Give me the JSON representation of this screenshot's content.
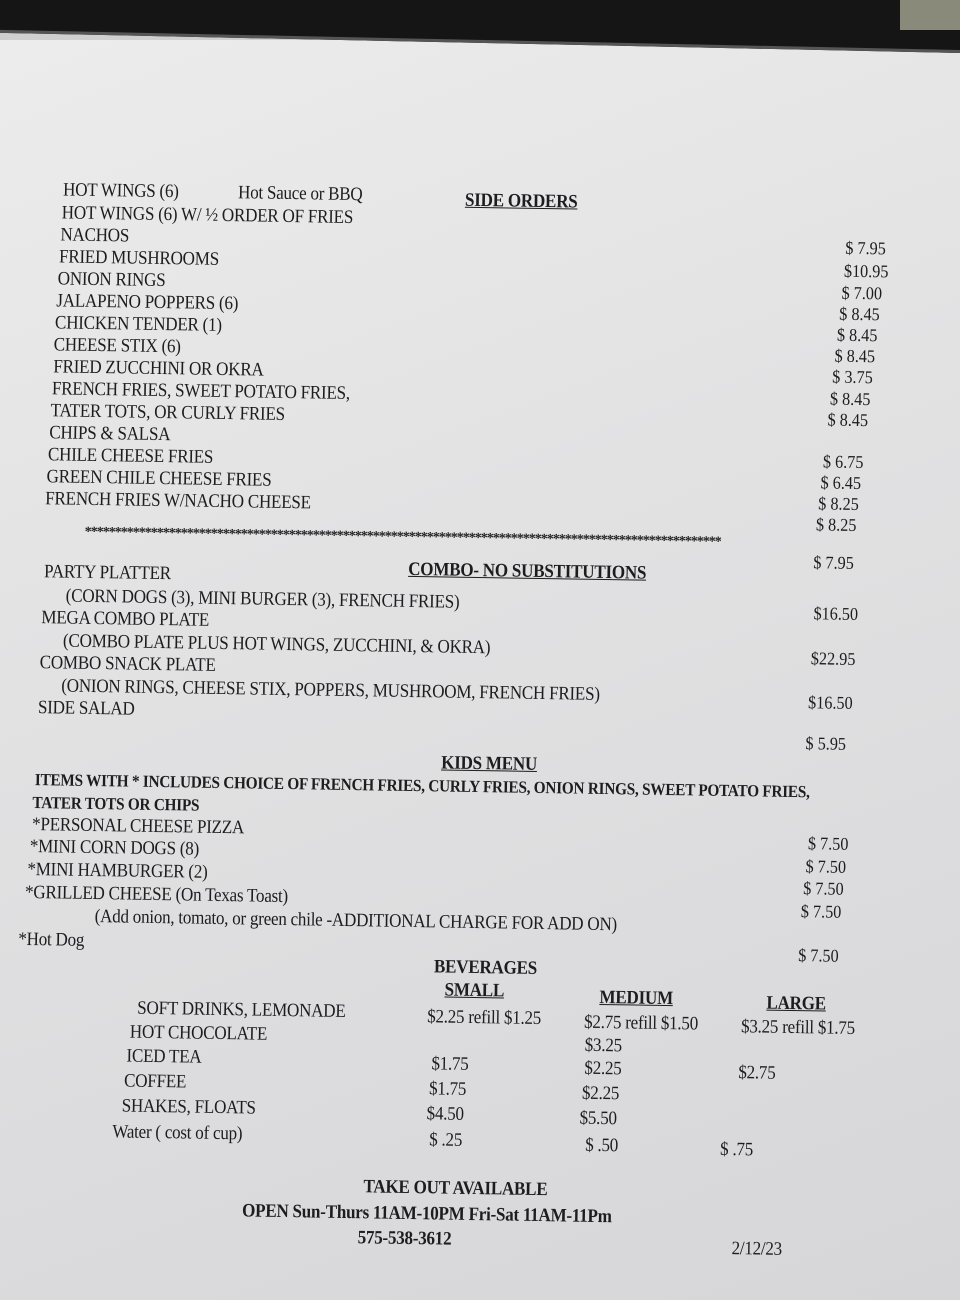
{
  "side_orders": {
    "heading": "SIDE ORDERS",
    "sauce_note": "Hot Sauce or BBQ",
    "items": [
      "HOT WINGS (6)",
      "HOT WINGS (6) W/ ½ ORDER OF FRIES",
      "NACHOS",
      "FRIED MUSHROOMS",
      "ONION RINGS",
      "JALAPENO POPPERS (6)",
      "CHICKEN TENDER (1)",
      "CHEESE STIX (6)",
      "FRIED ZUCCHINI OR OKRA",
      "FRENCH FRIES, SWEET POTATO FRIES,",
      "TATER TOTS, OR CURLY FRIES",
      "CHIPS & SALSA",
      "CHILE CHEESE FRIES",
      "GREEN CHILE CHEESE FRIES",
      "FRENCH FRIES W/NACHO CHEESE"
    ],
    "prices": [
      "$ 7.95",
      "$10.95",
      "$ 7.00",
      "$ 8.45",
      "$ 8.45",
      "$ 8.45",
      "$ 3.75",
      "$ 8.45",
      "$ 8.45",
      "$ 6.75",
      "$ 6.45",
      "$ 8.25",
      "$ 8.25",
      "$ 7.95"
    ]
  },
  "divider": "**********************************************************************************************************",
  "combo": {
    "heading": "COMBO- NO SUBSTITUTIONS",
    "items": [
      {
        "name": "PARTY PLATTER",
        "desc": "(CORN DOGS (3), MINI BURGER (3), FRENCH FRIES)",
        "price": "$16.50"
      },
      {
        "name": "MEGA COMBO PLATE",
        "desc": "(COMBO PLATE PLUS HOT WINGS, ZUCCHINI, & OKRA)",
        "price": "$22.95"
      },
      {
        "name": "COMBO SNACK PLATE",
        "desc": "(ONION RINGS, CHEESE STIX, POPPERS, MUSHROOM, FRENCH FRIES)",
        "price": "$16.50"
      },
      {
        "name": "SIDE SALAD",
        "price": "$ 5.95"
      }
    ]
  },
  "kids": {
    "heading": "KIDS MENU",
    "note_1": "ITEMS WITH * INCLUDES CHOICE OF  FRENCH FRIES, CURLY FRIES, ONION RINGS, SWEET POTATO FRIES,",
    "note_2": "TATER TOTS OR CHIPS",
    "items": [
      "*PERSONAL CHEESE PIZZA",
      "*MINI CORN DOGS (8)",
      "*MINI HAMBURGER  (2)",
      "*GRILLED CHEESE (On Texas Toast)",
      "(Add onion, tomato, or green chile -ADDITIONAL CHARGE FOR ADD ON)",
      "*Hot Dog"
    ],
    "prices": [
      "$ 7.50",
      "$ 7.50",
      "$ 7.50",
      "$ 7.50",
      "$ 7.50"
    ]
  },
  "beverages": {
    "heading": "BEVERAGES",
    "columns": [
      "SMALL",
      "MEDIUM",
      "LARGE"
    ],
    "rows": [
      {
        "name": "SOFT DRINKS, LEMONADE",
        "small": "$2.25 refill $1.25",
        "medium": "$2.75 refill $1.50",
        "large": "$3.25 refill $1.75"
      },
      {
        "name": "HOT CHOCOLATE",
        "small": "",
        "medium": "$3.25",
        "large": ""
      },
      {
        "name": "ICED TEA",
        "small": "$1.75",
        "medium": "$2.25",
        "large": "$2.75"
      },
      {
        "name": "COFFEE",
        "small": "$1.75",
        "medium": "$2.25",
        "large": ""
      },
      {
        "name": "SHAKES, FLOATS",
        "small": "$4.50",
        "medium": "$5.50",
        "large": ""
      },
      {
        "name": "Water  ( cost of cup)",
        "small": "$ .25",
        "medium": "$ .50",
        "large": "$  .75"
      }
    ]
  },
  "footer": {
    "takeout": "TAKE OUT AVAILABLE",
    "hours": "OPEN Sun-Thurs 11AM-10PM  Fri-Sat 11AM-11Pm",
    "phone": "575-538-3612",
    "date": "2/12/23"
  }
}
